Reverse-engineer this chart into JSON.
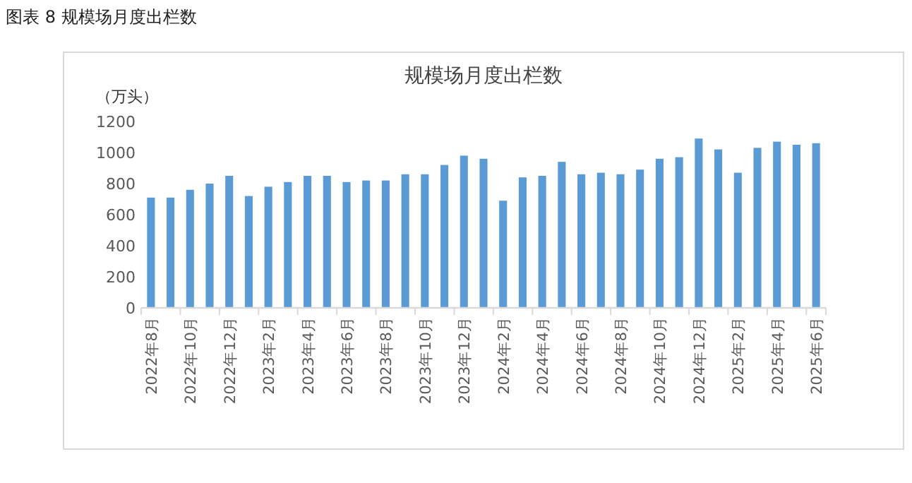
{
  "chart_data": {
    "type": "bar",
    "title": "规模场月度出栏数",
    "ylabel": "（万头）",
    "annotations": [
      "图表 8  规模场月度出栏数"
    ],
    "categories": [
      "2022年8月",
      null,
      "2022年10月",
      null,
      "2022年12月",
      null,
      "2023年2月",
      null,
      "2023年4月",
      null,
      "2023年6月",
      null,
      "2023年8月",
      null,
      "2023年10月",
      null,
      "2023年12月",
      null,
      "2024年2月",
      null,
      "2024年4月",
      null,
      "2024年6月",
      null,
      "2024年8月",
      null,
      "2024年10月",
      null,
      "2024年12月",
      null,
      "2025年2月",
      null,
      "2025年4月",
      null,
      "2025年6月"
    ],
    "values": [
      710,
      710,
      760,
      800,
      850,
      720,
      780,
      810,
      850,
      850,
      810,
      820,
      820,
      860,
      860,
      920,
      980,
      960,
      690,
      840,
      850,
      940,
      860,
      870,
      860,
      890,
      960,
      970,
      1090,
      1020,
      870,
      1030,
      1070,
      1050,
      1060
    ],
    "color": "#5b9bd5",
    "ylim": [
      0,
      1200
    ],
    "yticks": [
      0,
      200,
      400,
      600,
      800,
      1000,
      1200
    ],
    "grid": false
  }
}
